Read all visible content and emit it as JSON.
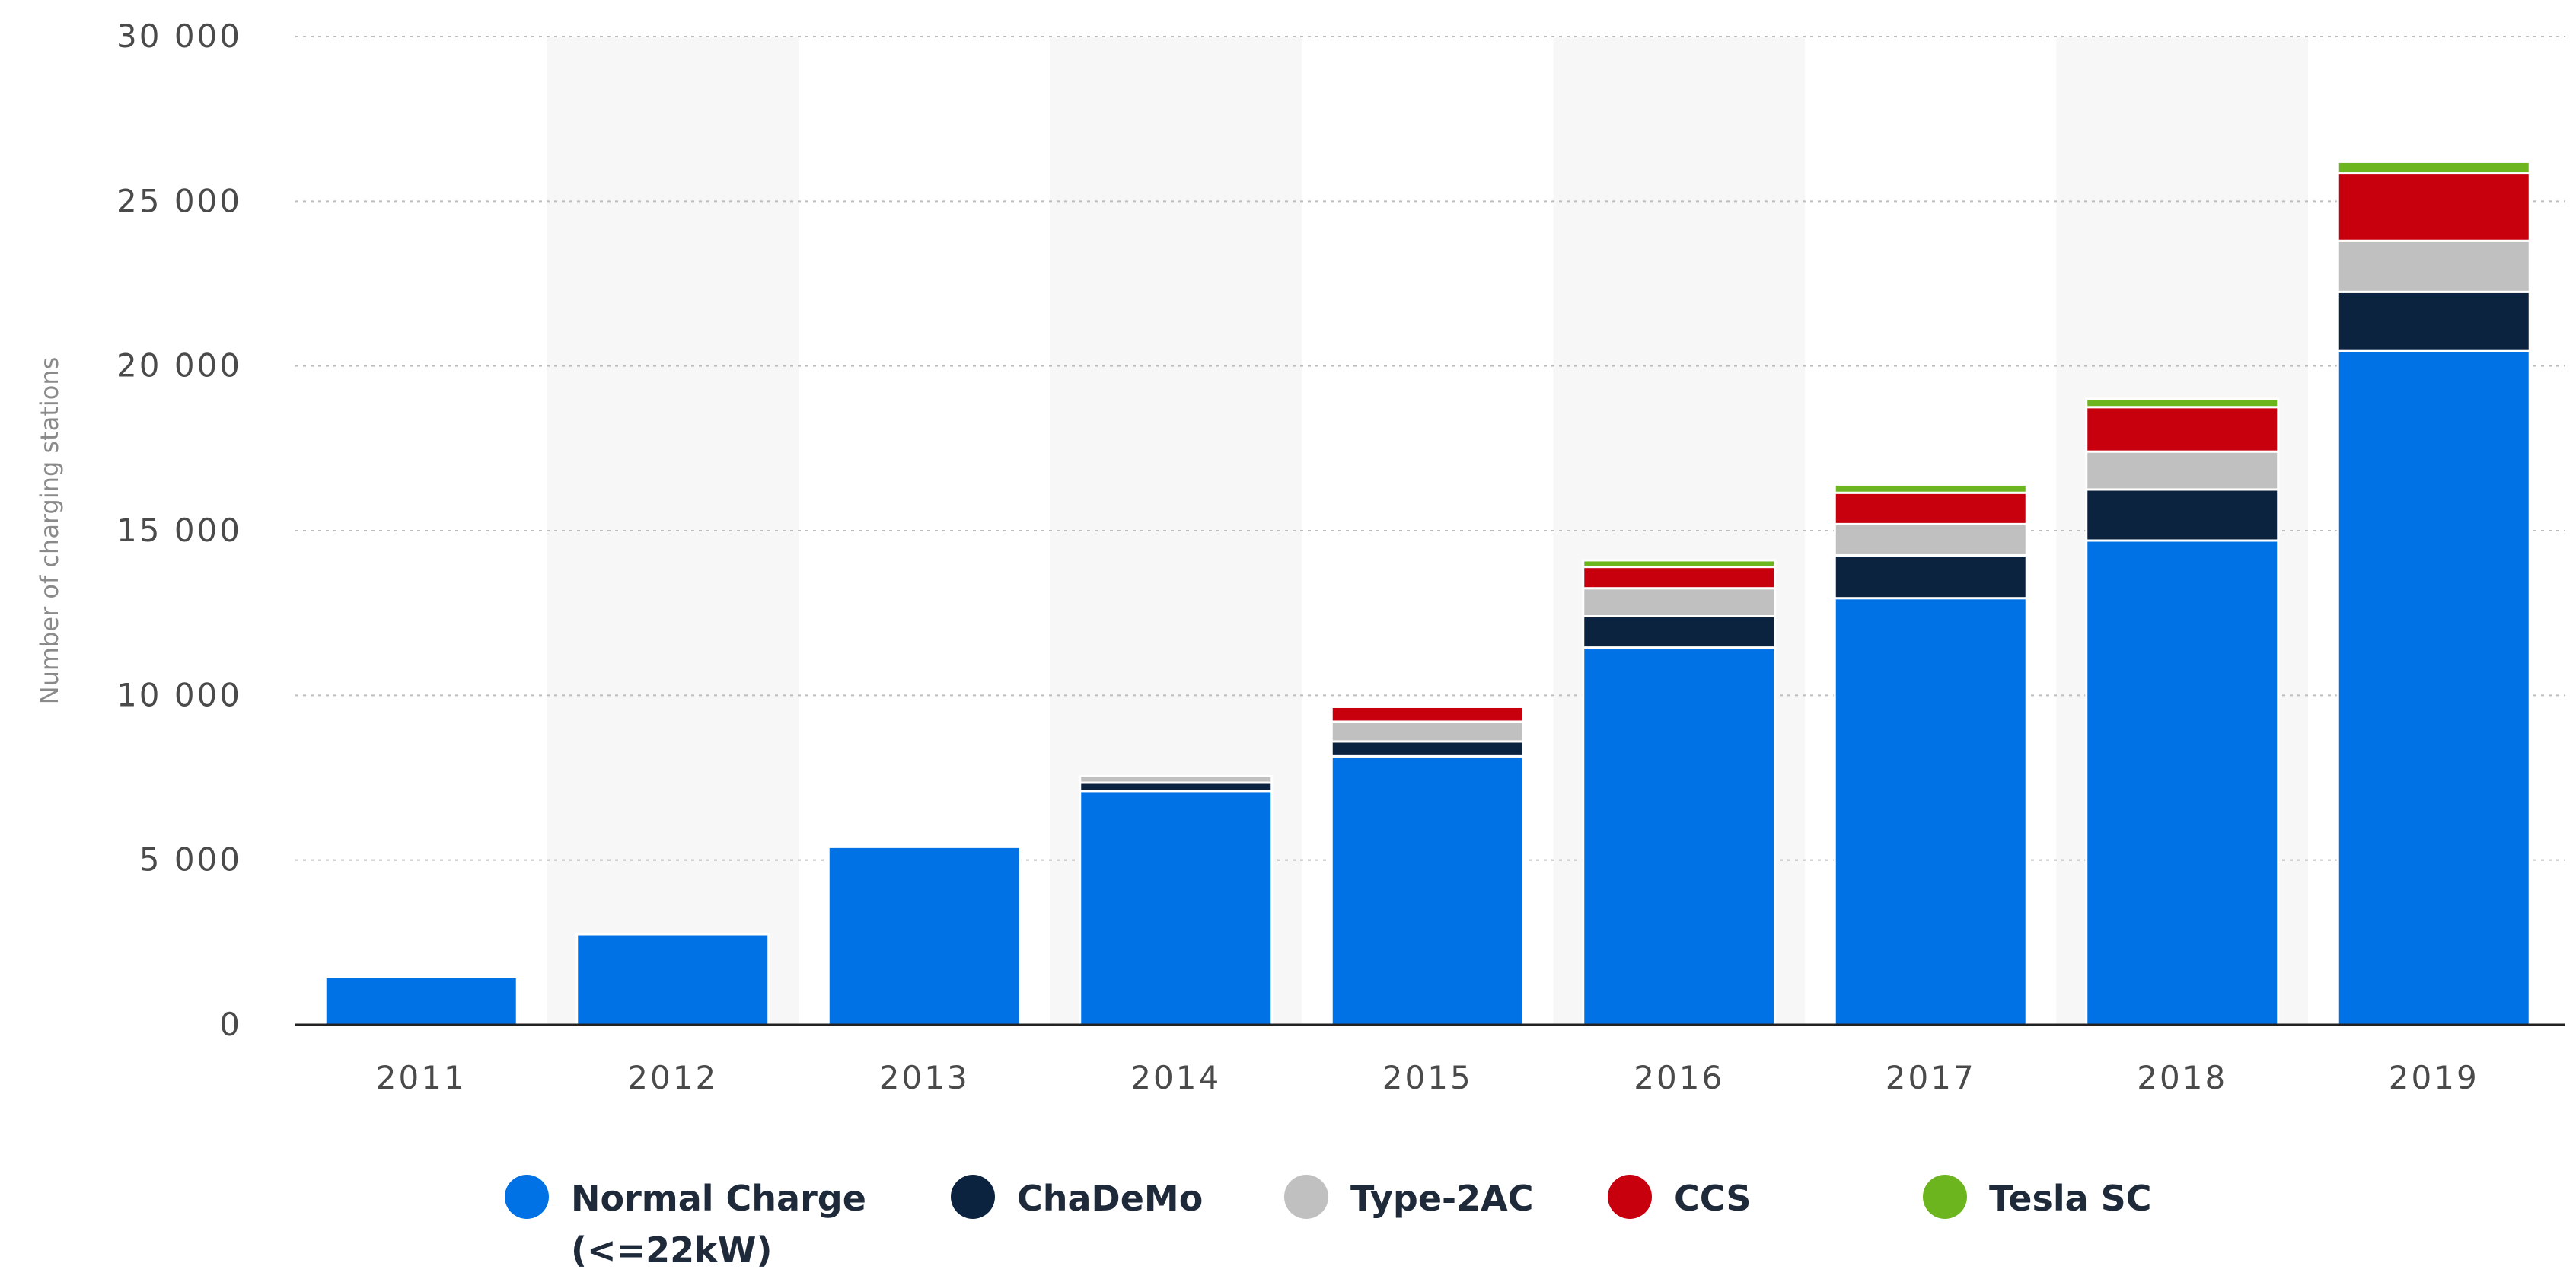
{
  "chart_data": {
    "type": "bar",
    "stacked": true,
    "categories": [
      "2011",
      "2012",
      "2013",
      "2014",
      "2015",
      "2016",
      "2017",
      "2018",
      "2019"
    ],
    "series": [
      {
        "name": "Normal Charge (<=22kW)",
        "color": "#0072e5",
        "values": [
          1450,
          2750,
          5400,
          7100,
          8150,
          11450,
          12950,
          14700,
          20450
        ]
      },
      {
        "name": "ChaDeMo",
        "color": "#0c2340",
        "values": [
          0,
          0,
          0,
          250,
          450,
          950,
          1300,
          1550,
          1800
        ]
      },
      {
        "name": "Type-2AC",
        "color": "#c0c0c0",
        "values": [
          0,
          0,
          0,
          200,
          600,
          850,
          950,
          1150,
          1550
        ]
      },
      {
        "name": "CCS",
        "color": "#c8000e",
        "values": [
          0,
          0,
          0,
          0,
          450,
          650,
          950,
          1350,
          2050
        ]
      },
      {
        "name": "Tesla SC",
        "color": "#6cb51f",
        "values": [
          0,
          0,
          0,
          0,
          0,
          200,
          250,
          250,
          350
        ]
      }
    ],
    "ylabel": "Number of charging stations",
    "ylim": [
      0,
      30000
    ],
    "yticks": [
      "0",
      "5 000",
      "10 000",
      "15 000",
      "20 000",
      "25 000",
      "30 000"
    ],
    "grid": true,
    "legend_position": "bottom",
    "legend": [
      {
        "line1": "Normal Charge",
        "line2": "(<=22kW)"
      },
      {
        "line1": "ChaDeMo",
        "line2": ""
      },
      {
        "line1": "Type-2AC",
        "line2": ""
      },
      {
        "line1": "CCS",
        "line2": ""
      },
      {
        "line1": "Tesla SC",
        "line2": ""
      }
    ]
  }
}
